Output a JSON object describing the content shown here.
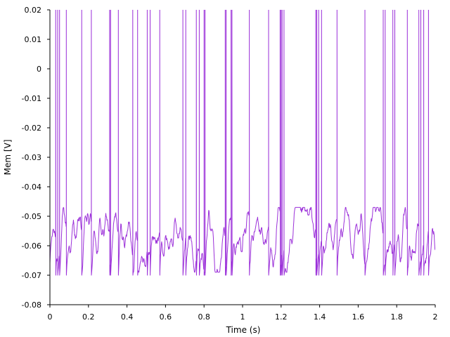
{
  "chart_data": {
    "type": "line",
    "xlabel": "Time (s)",
    "ylabel": "Mem [V]",
    "xlim": [
      0,
      2
    ],
    "ylim": [
      -0.08,
      0.02
    ],
    "xticks": [
      0,
      0.2,
      0.4,
      0.6,
      0.8,
      1,
      1.2,
      1.4,
      1.6,
      1.8,
      2
    ],
    "xtick_labels": [
      "0",
      "0.2",
      "0.4",
      "0.6",
      "0.8",
      "1",
      "1.2",
      "1.4",
      "1.6",
      "1.8",
      "2"
    ],
    "yticks": [
      0.02,
      0.01,
      0,
      -0.01,
      -0.02,
      -0.03,
      -0.04,
      -0.05,
      -0.06,
      -0.07,
      -0.08
    ],
    "ytick_labels": [
      "0.02",
      "0.01",
      "0",
      "-0.01",
      "-0.02",
      "-0.03",
      "-0.04",
      "-0.05",
      "-0.06",
      "-0.07",
      "-0.08"
    ],
    "grid": false,
    "line_color": "#9b30d9",
    "resting_potential": -0.056,
    "spike_peak": 0.03,
    "reset_potential": -0.07,
    "spike_times": [
      0.03,
      0.04,
      0.05,
      0.085,
      0.165,
      0.215,
      0.31,
      0.315,
      0.355,
      0.43,
      0.455,
      0.505,
      0.52,
      0.57,
      0.69,
      0.705,
      0.76,
      0.775,
      0.8,
      0.805,
      0.91,
      0.915,
      0.94,
      0.945,
      1.035,
      1.135,
      1.195,
      1.2,
      1.205,
      1.215,
      1.38,
      1.385,
      1.395,
      1.41,
      1.49,
      1.635,
      1.73,
      1.74,
      1.78,
      1.79,
      1.855,
      1.915,
      1.925,
      1.94,
      1.965
    ]
  }
}
